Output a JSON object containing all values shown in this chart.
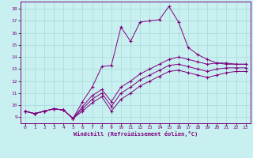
{
  "xlabel": "Windchill (Refroidissement éolien,°C)",
  "bg_color": "#c8f0f0",
  "line_color": "#800080",
  "grid_color": "#a8d8d8",
  "xlim": [
    -0.5,
    23.5
  ],
  "ylim": [
    8.5,
    18.6
  ],
  "xticks": [
    0,
    1,
    2,
    3,
    4,
    5,
    6,
    7,
    8,
    9,
    10,
    11,
    12,
    13,
    14,
    15,
    16,
    17,
    18,
    19,
    20,
    21,
    22,
    23
  ],
  "yticks": [
    9,
    10,
    11,
    12,
    13,
    14,
    15,
    16,
    17,
    18
  ],
  "line1": {
    "x": [
      0,
      1,
      2,
      3,
      4,
      5,
      6,
      7,
      8,
      9,
      10,
      11,
      12,
      13,
      14,
      15,
      16,
      17,
      18,
      19,
      20,
      21,
      22,
      23
    ],
    "y": [
      9.5,
      9.3,
      9.5,
      9.7,
      9.6,
      8.9,
      10.3,
      11.5,
      13.2,
      13.3,
      16.5,
      15.3,
      16.9,
      17.0,
      17.1,
      18.2,
      16.9,
      14.8,
      14.2,
      13.8,
      13.5,
      13.4,
      13.4,
      13.4
    ]
  },
  "line2": {
    "x": [
      0,
      1,
      2,
      3,
      4,
      5,
      6,
      7,
      8,
      9,
      10,
      11,
      12,
      13,
      14,
      15,
      16,
      17,
      18,
      19,
      20,
      21,
      22,
      23
    ],
    "y": [
      9.5,
      9.3,
      9.5,
      9.7,
      9.6,
      8.9,
      9.9,
      10.8,
      11.3,
      10.3,
      11.5,
      12.0,
      12.6,
      13.0,
      13.4,
      13.8,
      14.0,
      13.8,
      13.6,
      13.4,
      13.5,
      13.5,
      13.4,
      13.4
    ]
  },
  "line3": {
    "x": [
      0,
      1,
      2,
      3,
      4,
      5,
      6,
      7,
      8,
      9,
      10,
      11,
      12,
      13,
      14,
      15,
      16,
      17,
      18,
      19,
      20,
      21,
      22,
      23
    ],
    "y": [
      9.5,
      9.3,
      9.5,
      9.7,
      9.6,
      8.9,
      9.7,
      10.5,
      11.0,
      9.9,
      11.0,
      11.5,
      12.1,
      12.5,
      12.9,
      13.3,
      13.4,
      13.2,
      13.0,
      12.8,
      13.0,
      13.1,
      13.1,
      13.1
    ]
  },
  "line4": {
    "x": [
      0,
      1,
      2,
      3,
      4,
      5,
      6,
      7,
      8,
      9,
      10,
      11,
      12,
      13,
      14,
      15,
      16,
      17,
      18,
      19,
      20,
      21,
      22,
      23
    ],
    "y": [
      9.5,
      9.3,
      9.5,
      9.7,
      9.6,
      8.9,
      9.5,
      10.2,
      10.7,
      9.5,
      10.5,
      11.0,
      11.6,
      12.0,
      12.4,
      12.8,
      12.9,
      12.7,
      12.5,
      12.3,
      12.5,
      12.7,
      12.8,
      12.8
    ]
  }
}
